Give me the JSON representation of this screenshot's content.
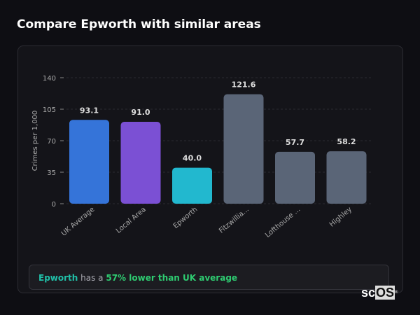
{
  "title": "Compare Epworth with similar areas",
  "chart_data": {
    "type": "bar",
    "ylabel": "Crimes per 1,000",
    "xlabel": "",
    "ylim": [
      0,
      140
    ],
    "yticks": [
      0,
      35,
      70,
      105,
      140
    ],
    "grid": true,
    "categories": [
      "UK Average",
      "Local Area",
      "Epworth",
      "Fitzwillia...",
      "Lofthouse ...",
      "Highley"
    ],
    "values": [
      93.1,
      91.0,
      40.0,
      121.6,
      57.7,
      58.2
    ],
    "data_labels": [
      "93.1",
      "91.0",
      "40.0",
      "121.6",
      "57.7",
      "58.2"
    ],
    "colors": [
      "#3574d9",
      "#7b50d4",
      "#22b8cf",
      "#5a6577",
      "#5a6577",
      "#5a6577"
    ]
  },
  "summary": {
    "place": "Epworth",
    "middle": " has a ",
    "comparison": "57% lower than UK average",
    "place_color": "#20c0a8",
    "comparison_color": "#2ecc71"
  },
  "logo": {
    "text_a": "sc",
    "text_b": "OS",
    "mark": "®"
  }
}
